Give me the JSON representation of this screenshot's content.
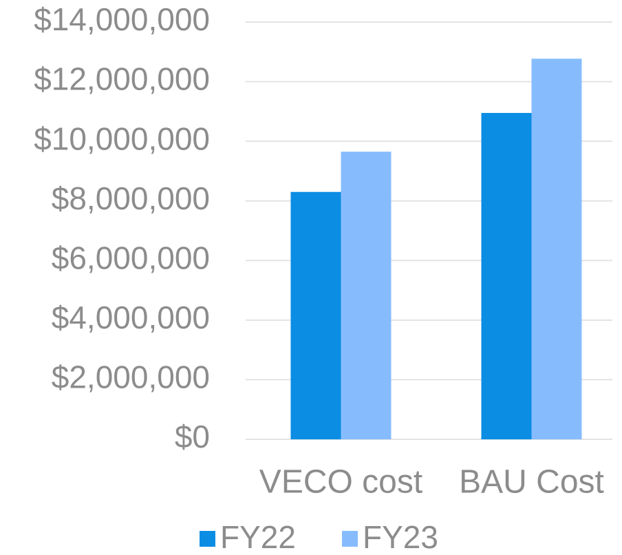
{
  "chart_data": {
    "type": "bar",
    "categories": [
      "VECO cost",
      "BAU Cost"
    ],
    "series": [
      {
        "name": "FY22",
        "color": "#0b8de4",
        "values": [
          8300000,
          10950000
        ]
      },
      {
        "name": "FY23",
        "color": "#86bcfe",
        "values": [
          9650000,
          12770000
        ]
      }
    ],
    "ylim": [
      0,
      14000000
    ],
    "yticks": [
      {
        "value": 0,
        "label": "$0"
      },
      {
        "value": 2000000,
        "label": "$2,000,000"
      },
      {
        "value": 4000000,
        "label": "$4,000,000"
      },
      {
        "value": 6000000,
        "label": "$6,000,000"
      },
      {
        "value": 8000000,
        "label": "$8,000,000"
      },
      {
        "value": 10000000,
        "label": "$10,000,000"
      },
      {
        "value": 12000000,
        "label": "$12,000,000"
      },
      {
        "value": 14000000,
        "label": "$14,000,000"
      }
    ],
    "grid": true,
    "legend": "bottom"
  }
}
